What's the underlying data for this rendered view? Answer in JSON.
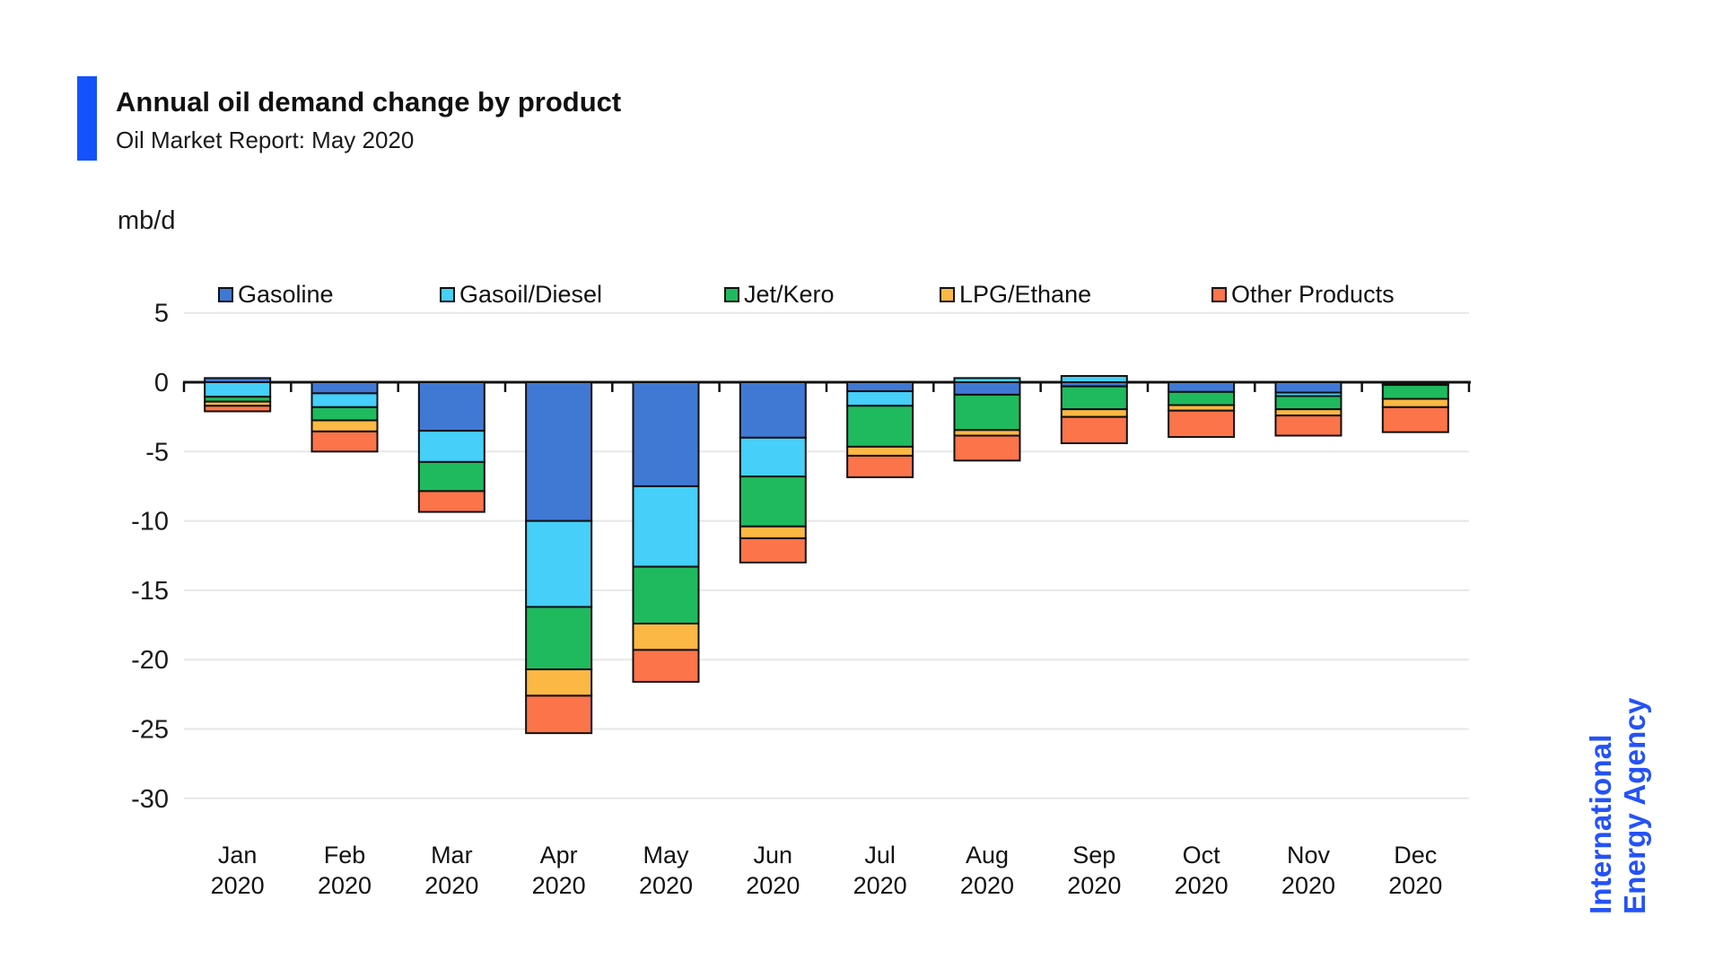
{
  "header": {
    "title": "Annual oil demand change by product",
    "subtitle": "Oil Market Report: May 2020",
    "accent_color": "#1453fb"
  },
  "branding": {
    "line1": "International",
    "line2": "Energy Agency",
    "color": "#2452f8"
  },
  "chart_data": {
    "type": "bar",
    "stacked": true,
    "title": "Annual oil demand change by product",
    "subtitle": "Oil Market Report: May 2020",
    "ylabel": "mb/d",
    "unit": "mb/d",
    "ylim": [
      -30,
      5
    ],
    "yticks": [
      5,
      0,
      -5,
      -10,
      -15,
      -20,
      -25,
      -30
    ],
    "grid": "horizontal",
    "legend_position": "top",
    "categories": [
      "Jan",
      "Feb",
      "Mar",
      "Apr",
      "May",
      "Jun",
      "Jul",
      "Aug",
      "Sep",
      "Oct",
      "Nov",
      "Dec"
    ],
    "year_label": "2020",
    "series": [
      {
        "name": "Gasoline",
        "color": "#4079d4",
        "values": [
          0.3,
          -0.8,
          -3.5,
          -10.0,
          -7.5,
          -4.0,
          -0.65,
          -0.9,
          -0.3,
          -0.7,
          -0.75,
          -0.1
        ]
      },
      {
        "name": "Gasoil/Diesel",
        "color": "#45cff9",
        "values": [
          -1.05,
          -1.0,
          -2.25,
          -6.2,
          -5.8,
          -2.8,
          -1.05,
          0.3,
          0.45,
          0.0,
          -0.25,
          -0.1
        ]
      },
      {
        "name": "Jet/Kero",
        "color": "#1fba5e",
        "values": [
          -0.35,
          -0.95,
          -2.1,
          -4.5,
          -4.1,
          -3.6,
          -2.95,
          -2.55,
          -1.65,
          -0.95,
          -0.95,
          -1.0
        ]
      },
      {
        "name": "LPG/Ethane",
        "color": "#fcb844",
        "values": [
          -0.3,
          -0.8,
          0.0,
          -1.9,
          -1.9,
          -0.85,
          -0.65,
          -0.4,
          -0.55,
          -0.4,
          -0.45,
          -0.6
        ]
      },
      {
        "name": "Other Products",
        "color": "#fc744a",
        "values": [
          -0.4,
          -1.45,
          -1.5,
          -2.7,
          -2.3,
          -1.75,
          -1.55,
          -1.8,
          -1.9,
          -1.9,
          -1.45,
          -1.8
        ]
      }
    ]
  }
}
